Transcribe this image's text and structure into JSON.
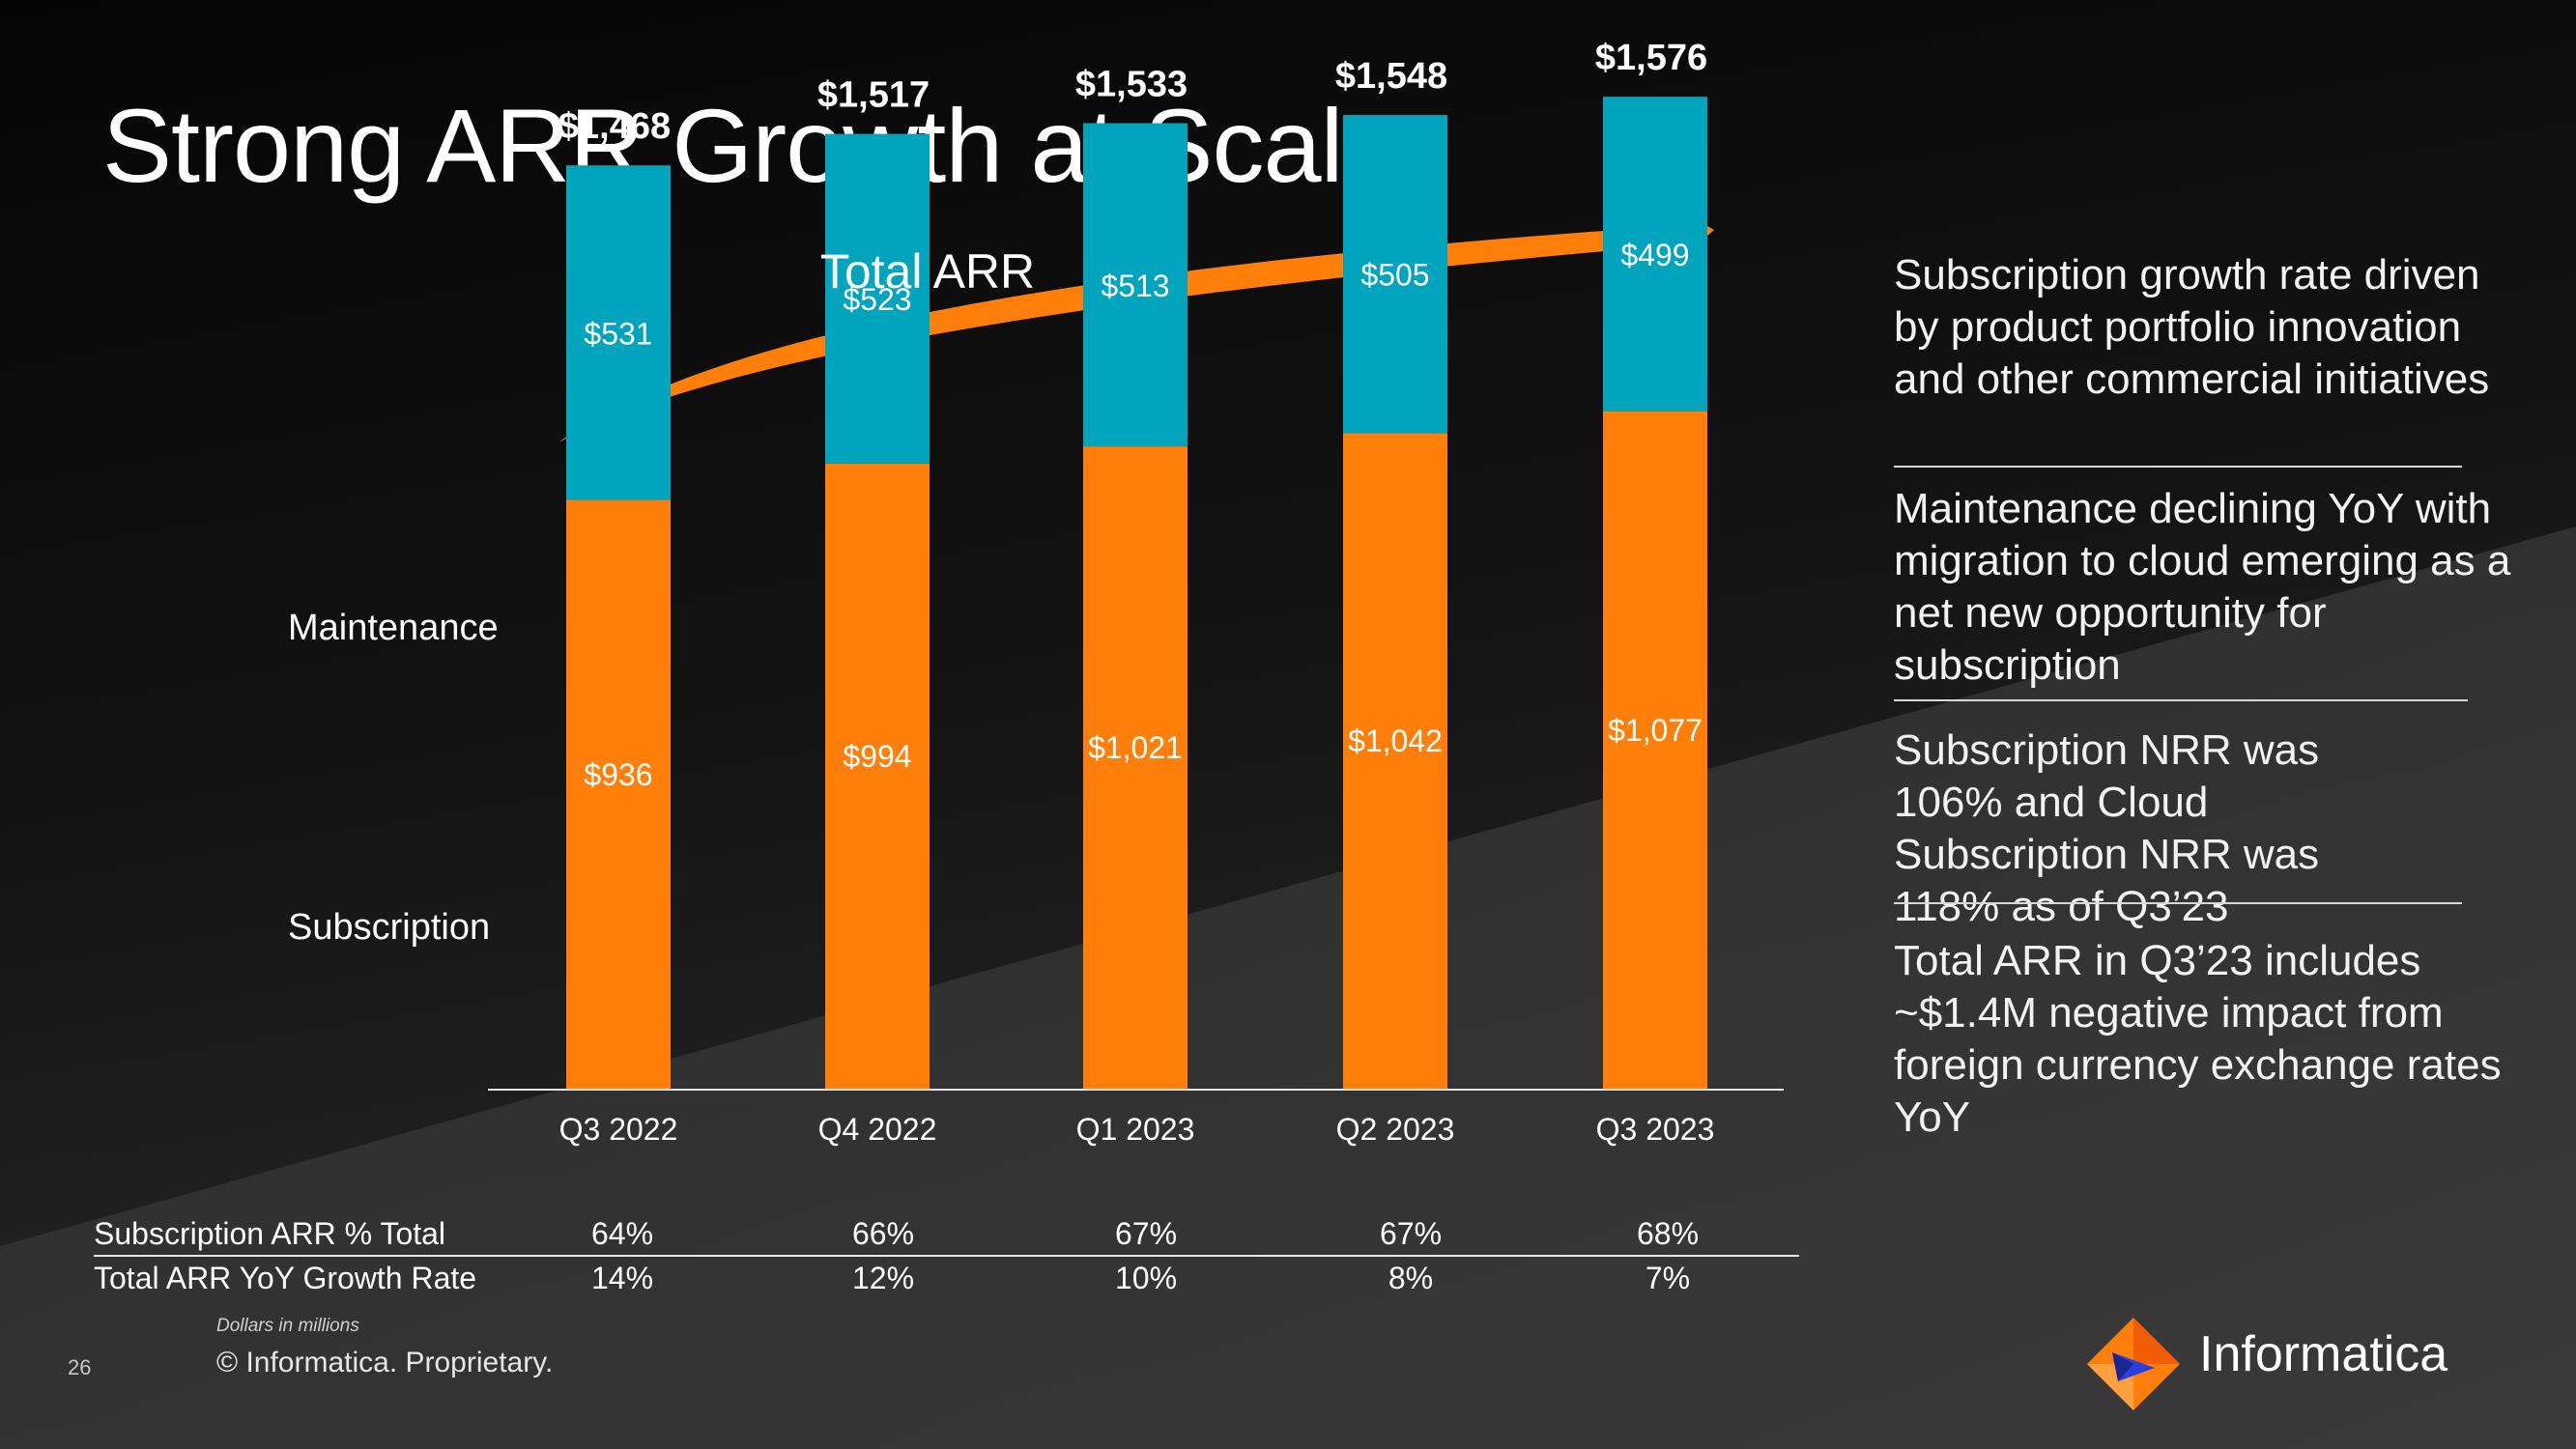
{
  "slide": {
    "title": "Strong ARR Growth at Scale",
    "page_number": "26",
    "footnote": "Dollars in millions",
    "copyright": "© Informatica. Proprietary.",
    "logo_text": "Informatica",
    "logo_icon": "informatica-diamond-logo-icon"
  },
  "colors": {
    "subscription": "#FF7F0A",
    "maintenance": "#00A5BD",
    "arrow": "#FF7F0A",
    "text": "#FFFFFF"
  },
  "chart_data": {
    "type": "bar",
    "stacked": true,
    "title": "Total ARR",
    "categories": [
      "Q3 2022",
      "Q4 2022",
      "Q1 2023",
      "Q2 2023",
      "Q3 2023"
    ],
    "series": [
      {
        "name": "Subscription",
        "values": [
          936,
          994,
          1021,
          1042,
          1077
        ],
        "labels": [
          "$936",
          "$994",
          "$1,021",
          "$1,042",
          "$1,077"
        ]
      },
      {
        "name": "Maintenance",
        "values": [
          531,
          523,
          513,
          505,
          499
        ],
        "labels": [
          "$531",
          "$523",
          "$513",
          "$505",
          "$499"
        ]
      }
    ],
    "totals": [
      1468,
      1517,
      1533,
      1548,
      1576
    ],
    "total_labels": [
      "$1,468",
      "$1,517",
      "$1,533",
      "$1,548",
      "$1,576"
    ],
    "legend_placement": "left",
    "grid": false,
    "table": {
      "rows": [
        {
          "label": "Subscription ARR % Total",
          "values": [
            "64%",
            "66%",
            "67%",
            "67%",
            "68%"
          ]
        },
        {
          "label": "Total ARR YoY Growth Rate",
          "values": [
            "14%",
            "12%",
            "10%",
            "8%",
            "7%"
          ]
        }
      ]
    }
  },
  "bullets": [
    "Subscription growth rate driven by product portfolio innovation and other commercial initiatives",
    "Maintenance declining YoY with migration to cloud emerging as a net new opportunity for subscription",
    "Subscription NRR was 106% and Cloud Subscription NRR was 118% as of Q3’23",
    "Total ARR in Q3’23 includes ~$1.4M negative impact from foreign currency exchange rates YoY"
  ]
}
